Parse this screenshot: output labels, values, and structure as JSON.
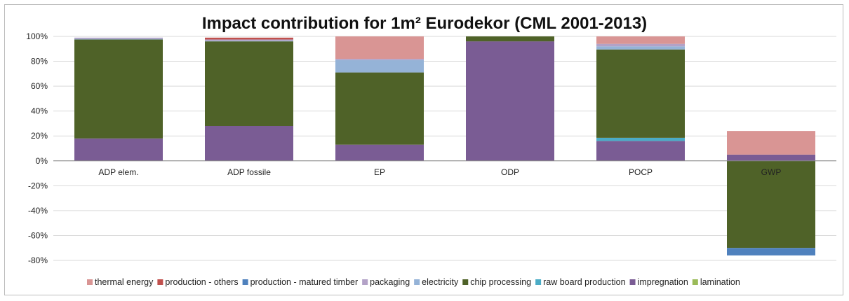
{
  "chart_data": {
    "type": "bar",
    "stacked": true,
    "title": "Impact contribution for 1m² Eurodekor (CML 2001-2013)",
    "ylim": [
      -80,
      100
    ],
    "yticks": [
      "100%",
      "80%",
      "60%",
      "40%",
      "20%",
      "0%",
      "-20%",
      "-40%",
      "-60%",
      "-80%"
    ],
    "ytick_values": [
      100,
      80,
      60,
      40,
      20,
      0,
      -20,
      -40,
      -60,
      -80
    ],
    "grid": true,
    "legend_position": "bottom",
    "categories": [
      "ADP elem.",
      "ADP fossile",
      "EP",
      "ODP",
      "POCP",
      "GWP"
    ],
    "series": [
      {
        "name": "thermal energy",
        "color": "#d99594",
        "values": [
          0,
          0,
          18,
          0,
          6,
          19
        ]
      },
      {
        "name": "production - others",
        "color": "#c0504d",
        "values": [
          0,
          1.5,
          0,
          0,
          0,
          0
        ]
      },
      {
        "name": "production - matured timber",
        "color": "#4f81bd",
        "values": [
          0,
          0,
          0,
          0,
          0,
          -6
        ]
      },
      {
        "name": "packaging",
        "color": "#b3a2c7",
        "values": [
          1,
          1,
          1,
          0,
          2,
          0
        ]
      },
      {
        "name": "electricity",
        "color": "#95b3d7",
        "values": [
          0.5,
          0.5,
          10,
          0,
          2.5,
          0
        ]
      },
      {
        "name": "chip processing",
        "color": "#4f6228",
        "values": [
          79.5,
          68,
          58,
          4,
          71,
          -70
        ]
      },
      {
        "name": "raw board production",
        "color": "#4bacc6",
        "values": [
          0,
          0,
          0,
          0,
          2.5,
          0
        ]
      },
      {
        "name": "impregnation",
        "color": "#7a5c94",
        "values": [
          18,
          28,
          13,
          96,
          16,
          5
        ]
      },
      {
        "name": "lamination",
        "color": "#9bbb59",
        "values": [
          0,
          0,
          0,
          0,
          0,
          0
        ]
      }
    ],
    "stack_order_positive": [
      "lamination",
      "impregnation",
      "raw board production",
      "chip processing",
      "electricity",
      "packaging",
      "production - matured timber",
      "production - others",
      "thermal energy"
    ]
  }
}
